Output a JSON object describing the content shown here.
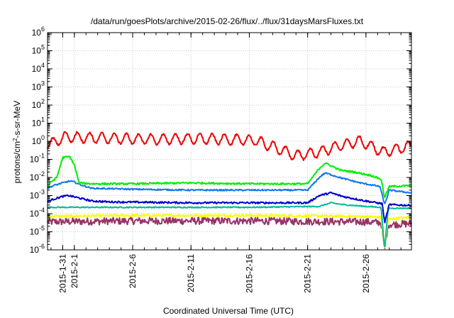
{
  "chart_data": {
    "type": "line",
    "title": "/data/run/goesPlots/archive/2015-02-26/flux/../flux/31daysMarsFluxes.txt",
    "xlabel": "Coordinated Universal Time (UTC)",
    "ylabel_parts": {
      "base": "protons/cm",
      "sup": "2",
      "rest": "-s-sr-MeV"
    },
    "x_range_days": [
      -2.3,
      28.9
    ],
    "x_ticks": [
      {
        "label": "2015-1-31",
        "day": -1
      },
      {
        "label": "2015-2-1",
        "day": 0
      },
      {
        "label": "2015-2-6",
        "day": 5
      },
      {
        "label": "2015-2-11",
        "day": 10
      },
      {
        "label": "2015-2-16",
        "day": 15
      },
      {
        "label": "2015-2-21",
        "day": 20
      },
      {
        "label": "2015-2-26",
        "day": 25
      }
    ],
    "y_scale": "log",
    "y_range_exp": [
      -6,
      6
    ],
    "y_ticks_exp": [
      -6,
      -5,
      -4,
      -3,
      -2,
      -1,
      0,
      1,
      2,
      3,
      4,
      5,
      6
    ],
    "y_tick_base": "10",
    "grid": true,
    "series": [
      {
        "color": "#ee0000",
        "kind": "osc",
        "noise": 0.05,
        "points": [
          [
            -2.3,
            -0.15
          ],
          [
            -1.8,
            -0.1
          ],
          [
            -0.8,
            0.25
          ],
          [
            1,
            0.2
          ],
          [
            4,
            0.15
          ],
          [
            7,
            0.1
          ],
          [
            10,
            0.15
          ],
          [
            13,
            0.1
          ],
          [
            15.5,
            0.05
          ],
          [
            17,
            -0.3
          ],
          [
            19,
            -0.8
          ],
          [
            21,
            -0.6
          ],
          [
            23,
            -0.2
          ],
          [
            24.5,
            0
          ],
          [
            26.5,
            -0.6
          ],
          [
            28.9,
            -0.25
          ]
        ]
      },
      {
        "color": "#00ee00",
        "kind": "noise",
        "noise": 0.05,
        "points": [
          [
            -2.3,
            -2.55
          ],
          [
            -2,
            -2.25
          ],
          [
            -1.5,
            -2
          ],
          [
            -1,
            -0.9
          ],
          [
            -0.4,
            -0.85
          ],
          [
            0,
            -1.3
          ],
          [
            0.4,
            -2.3
          ],
          [
            1.5,
            -2.35
          ],
          [
            5,
            -2.35
          ],
          [
            10,
            -2.3
          ],
          [
            15,
            -2.35
          ],
          [
            20,
            -2.35
          ],
          [
            21,
            -1.5
          ],
          [
            21.5,
            -1.2
          ],
          [
            22,
            -1.35
          ],
          [
            22.8,
            -1.6
          ],
          [
            24,
            -1.7
          ],
          [
            25.5,
            -1.9
          ],
          [
            26.3,
            -2.1
          ],
          [
            26.6,
            -3.1
          ],
          [
            27,
            -2.5
          ],
          [
            28.9,
            -2.45
          ]
        ]
      },
      {
        "color": "#1177ee",
        "kind": "noise",
        "noise": 0.04,
        "points": [
          [
            -2.3,
            -2.6
          ],
          [
            -1.8,
            -2.45
          ],
          [
            -1,
            -2.3
          ],
          [
            -0.4,
            -2.2
          ],
          [
            0,
            -2.25
          ],
          [
            0.5,
            -2.4
          ],
          [
            1.5,
            -2.6
          ],
          [
            5,
            -2.65
          ],
          [
            10,
            -2.7
          ],
          [
            15,
            -2.7
          ],
          [
            20,
            -2.7
          ],
          [
            21,
            -2.0
          ],
          [
            21.5,
            -1.75
          ],
          [
            22,
            -1.85
          ],
          [
            23,
            -2.05
          ],
          [
            24.5,
            -2.3
          ],
          [
            26.2,
            -2.5
          ],
          [
            26.6,
            -3.5
          ],
          [
            27,
            -2.7
          ],
          [
            28.9,
            -2.85
          ]
        ]
      },
      {
        "color": "#0000cc",
        "kind": "noise",
        "noise": 0.05,
        "points": [
          [
            -2.3,
            -3.35
          ],
          [
            -1.8,
            -3.2
          ],
          [
            -1,
            -3.05
          ],
          [
            -0.5,
            -3.0
          ],
          [
            0.5,
            -3.15
          ],
          [
            1.5,
            -3.3
          ],
          [
            3,
            -3.35
          ],
          [
            10,
            -3.4
          ],
          [
            20,
            -3.4
          ],
          [
            21,
            -3.0
          ],
          [
            22,
            -2.85
          ],
          [
            23,
            -3.05
          ],
          [
            25,
            -3.3
          ],
          [
            26.4,
            -3.45
          ],
          [
            26.6,
            -4.5
          ],
          [
            27,
            -3.5
          ],
          [
            28.9,
            -3.55
          ]
        ]
      },
      {
        "color": "#00bb99",
        "kind": "noise",
        "noise": 0.03,
        "points": [
          [
            -2.3,
            -3.65
          ],
          [
            5,
            -3.65
          ],
          [
            15,
            -3.65
          ],
          [
            21,
            -3.6
          ],
          [
            22,
            -3.4
          ],
          [
            23,
            -3.5
          ],
          [
            25,
            -3.6
          ],
          [
            26.3,
            -3.65
          ],
          [
            26.6,
            -6
          ],
          [
            26.9,
            -3.7
          ],
          [
            28.9,
            -3.7
          ]
        ]
      },
      {
        "color": "#ffff00",
        "kind": "noise",
        "noise": 0.07,
        "points": [
          [
            -2.3,
            -4.15
          ],
          [
            5,
            -4.1
          ],
          [
            15,
            -4.1
          ],
          [
            25,
            -4.15
          ],
          [
            26.3,
            -4.2
          ],
          [
            26.6,
            -6
          ],
          [
            26.9,
            -4.3
          ],
          [
            28.9,
            -4.2
          ]
        ]
      },
      {
        "color": "#993366",
        "kind": "noise",
        "noise": 0.2,
        "points": [
          [
            -2.3,
            -4.45
          ],
          [
            5,
            -4.4
          ],
          [
            15,
            -4.4
          ],
          [
            25,
            -4.45
          ],
          [
            26.3,
            -4.5
          ],
          [
            26.6,
            -6
          ],
          [
            26.9,
            -4.6
          ],
          [
            28.9,
            -4.55
          ]
        ]
      }
    ]
  }
}
